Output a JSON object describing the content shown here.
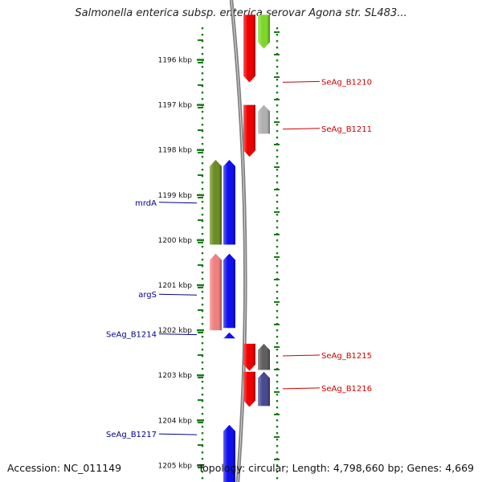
{
  "title": "Salmonella enterica subsp. enterica serovar Agona str. SL483...",
  "footer": {
    "accession": "Accession: NC_011149",
    "summary": "Topology: circular; Length: 4,798,660 bp; Genes: 4,669"
  },
  "map": {
    "start_kbp": 1195.2,
    "end_kbp": 1205.35,
    "scale_ticks": [
      "1196 kbp",
      "1197 kbp",
      "1198 kbp",
      "1199 kbp",
      "1200 kbp",
      "1201 kbp",
      "1202 kbp",
      "1203 kbp",
      "1204 kbp",
      "1205 kbp"
    ],
    "gene_labels": [
      {
        "text": "SeAg_B1210",
        "side": "right",
        "color": "#cc0000",
        "kbp": 1196.48
      },
      {
        "text": "SeAg_B1211",
        "side": "right",
        "color": "#cc0000",
        "kbp": 1197.52
      },
      {
        "text": "mrdA",
        "side": "left",
        "color": "#00008b",
        "kbp": 1199.16
      },
      {
        "text": "argS",
        "side": "left",
        "color": "#00008b",
        "kbp": 1201.2
      },
      {
        "text": "SeAg_B1214",
        "side": "left",
        "color": "#00008b",
        "kbp": 1202.08
      },
      {
        "text": "SeAg_B1215",
        "side": "right",
        "color": "#cc0000",
        "kbp": 1202.55
      },
      {
        "text": "SeAg_B1216",
        "side": "right",
        "color": "#cc0000",
        "kbp": 1203.28
      },
      {
        "text": "SeAg_B1217",
        "side": "left",
        "color": "#00008b",
        "kbp": 1204.3
      }
    ],
    "features": [
      {
        "name": "feature-green-top",
        "lane": "right-outer",
        "color": "#7fd62a",
        "start_kbp": 1195.0,
        "end_kbp": 1195.75,
        "strand": "-"
      },
      {
        "name": "feature-red-b1209",
        "lane": "right-inner",
        "color": "#ee0000",
        "start_kbp": 1195.0,
        "end_kbp": 1196.5,
        "strand": "-"
      },
      {
        "name": "feature-gray-b1211",
        "lane": "right-outer",
        "color": "#b0b0b0",
        "start_kbp": 1197.0,
        "end_kbp": 1197.64,
        "strand": "+"
      },
      {
        "name": "feature-red-b1211",
        "lane": "right-inner",
        "color": "#ee0000",
        "start_kbp": 1197.0,
        "end_kbp": 1198.15,
        "strand": "-"
      },
      {
        "name": "feature-olive-mrda",
        "lane": "left-outer",
        "color": "#6b8e23",
        "start_kbp": 1198.22,
        "end_kbp": 1200.1,
        "strand": "+"
      },
      {
        "name": "feature-blue-mrda",
        "lane": "left-inner",
        "color": "#1010ee",
        "start_kbp": 1198.22,
        "end_kbp": 1200.1,
        "strand": "+"
      },
      {
        "name": "feature-pink-args",
        "lane": "left-outer",
        "color": "#f08080",
        "start_kbp": 1200.3,
        "end_kbp": 1202.0,
        "strand": "+"
      },
      {
        "name": "feature-blue-args",
        "lane": "left-inner",
        "color": "#1010ee",
        "start_kbp": 1200.3,
        "end_kbp": 1201.95,
        "strand": "+"
      },
      {
        "name": "feature-blue-b1214",
        "lane": "left-inner",
        "color": "#1010ee",
        "start_kbp": 1202.05,
        "end_kbp": 1202.18,
        "strand": "+"
      },
      {
        "name": "feature-dark-gray-b1215",
        "lane": "right-outer",
        "color": "#606060",
        "start_kbp": 1202.3,
        "end_kbp": 1202.88,
        "strand": "+"
      },
      {
        "name": "feature-red-b1215",
        "lane": "right-inner",
        "color": "#ee0000",
        "start_kbp": 1202.3,
        "end_kbp": 1202.9,
        "strand": "-"
      },
      {
        "name": "feature-purple-b1216",
        "lane": "right-outer",
        "color": "#4a4a90",
        "start_kbp": 1202.92,
        "end_kbp": 1203.68,
        "strand": "+"
      },
      {
        "name": "feature-red-b1216",
        "lane": "right-inner",
        "color": "#ee0000",
        "start_kbp": 1202.92,
        "end_kbp": 1203.7,
        "strand": "-"
      },
      {
        "name": "feature-blue-b1217",
        "lane": "left-inner",
        "color": "#1010ee",
        "start_kbp": 1204.1,
        "end_kbp": 1205.6,
        "strand": "+"
      }
    ]
  }
}
